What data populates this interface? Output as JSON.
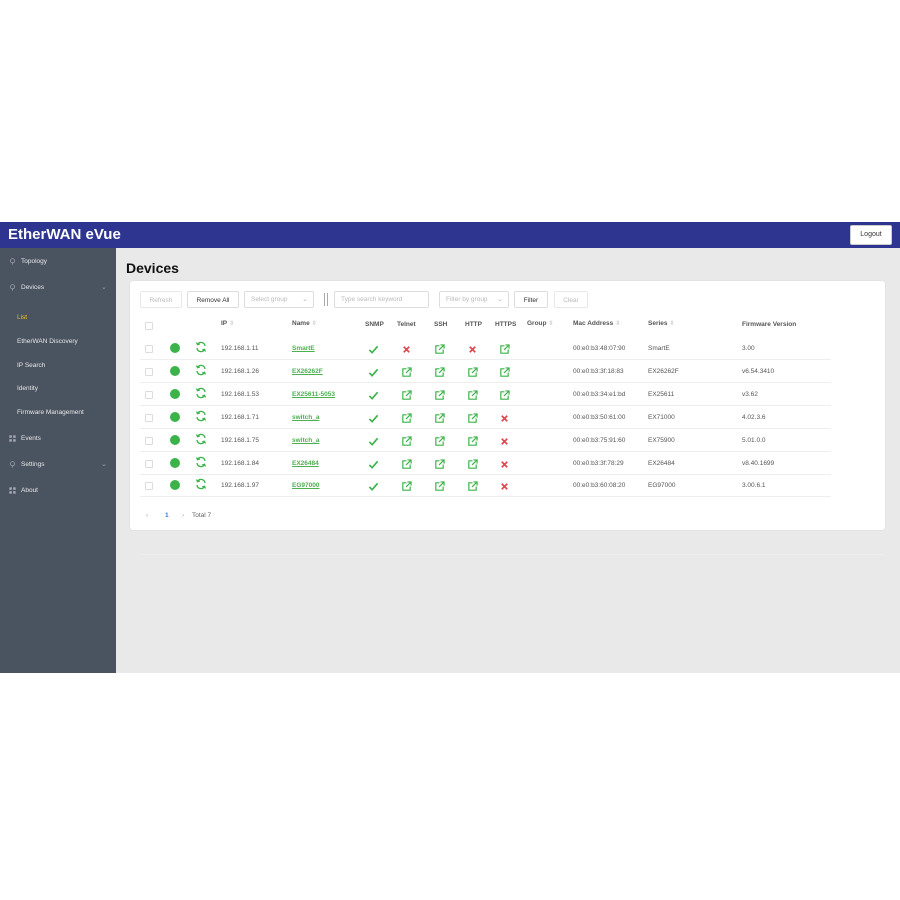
{
  "app": {
    "title": "EtherWAN eVue",
    "logout_label": "Logout"
  },
  "sidebar": {
    "items": [
      {
        "label": "Topology",
        "icon": "location-pin-icon"
      },
      {
        "label": "Devices",
        "icon": "location-pin-icon",
        "expanded": true
      },
      {
        "label": "Events",
        "icon": "grid-icon"
      },
      {
        "label": "Settings",
        "icon": "location-pin-icon"
      },
      {
        "label": "About",
        "icon": "grid-icon"
      }
    ],
    "devices_sub": [
      {
        "label": "List",
        "active": true
      },
      {
        "label": "EtherWAN Discovery"
      },
      {
        "label": "IP Search"
      },
      {
        "label": "Identity"
      },
      {
        "label": "Firmware Management"
      }
    ]
  },
  "page": {
    "title": "Devices"
  },
  "toolbar": {
    "refresh_label": "Refresh",
    "remove_all_label": "Remove All",
    "select_group_placeholder": "Select group",
    "search_placeholder": "Type search keyword",
    "filter_by_group_placeholder": "Filter by group",
    "filter_label": "Filter",
    "clear_label": "Clear"
  },
  "table": {
    "headers": {
      "ip": "IP",
      "name": "Name",
      "snmp": "SNMP",
      "telnet": "Telnet",
      "ssh": "SSH",
      "http": "HTTP",
      "https": "HTTPS",
      "group": "Group",
      "mac": "Mac Address",
      "series": "Series",
      "firmware": "Firmware Version"
    },
    "rows": [
      {
        "ip": "192.168.1.11",
        "name": "SmartE",
        "snmp": "check",
        "telnet": "cross",
        "ssh": "link",
        "http": "cross",
        "https": "link",
        "mac": "00:e0:b3:48:07:90",
        "series": "SmartE",
        "firmware": "3.00"
      },
      {
        "ip": "192.168.1.26",
        "name": "EX26262F",
        "snmp": "check",
        "telnet": "link",
        "ssh": "link",
        "http": "link",
        "https": "link",
        "mac": "00:e0:b3:3f:18:83",
        "series": "EX26262F",
        "firmware": "v6.54.3410"
      },
      {
        "ip": "192.168.1.53",
        "name": "EX25611-5053",
        "snmp": "check",
        "telnet": "link",
        "ssh": "link",
        "http": "link",
        "https": "link",
        "mac": "00:e0:b3:34:e1:bd",
        "series": "EX25611",
        "firmware": "v3.62"
      },
      {
        "ip": "192.168.1.71",
        "name": "switch_a",
        "snmp": "check",
        "telnet": "link",
        "ssh": "link",
        "http": "link",
        "https": "cross",
        "mac": "00:e0:b3:50:61:00",
        "series": "EX71000",
        "firmware": "4.02.3.6"
      },
      {
        "ip": "192.168.1.75",
        "name": "switch_a",
        "snmp": "check",
        "telnet": "link",
        "ssh": "link",
        "http": "link",
        "https": "cross",
        "mac": "00:e0:b3:75:91:60",
        "series": "EX75900",
        "firmware": "5.01.0.0"
      },
      {
        "ip": "192.168.1.84",
        "name": "EX26484",
        "snmp": "check",
        "telnet": "link",
        "ssh": "link",
        "http": "link",
        "https": "cross",
        "mac": "00:e0:b3:3f:78:29",
        "series": "EX26484",
        "firmware": "v8.40.1699"
      },
      {
        "ip": "192.168.1.97",
        "name": "EG97000",
        "snmp": "check",
        "telnet": "link",
        "ssh": "link",
        "http": "link",
        "https": "cross",
        "mac": "00:e0:b3:60:08:20",
        "series": "EG97000",
        "firmware": "3.00.6.1"
      }
    ]
  },
  "pagination": {
    "current_page": "1",
    "total_label": "Total 7",
    "prev": "‹",
    "next": "›"
  },
  "colors": {
    "topbar": "#2e3590",
    "sidebar": "#4a5360",
    "success": "#3cb34a",
    "danger": "#e0474c",
    "active_nav": "#f0c419"
  }
}
